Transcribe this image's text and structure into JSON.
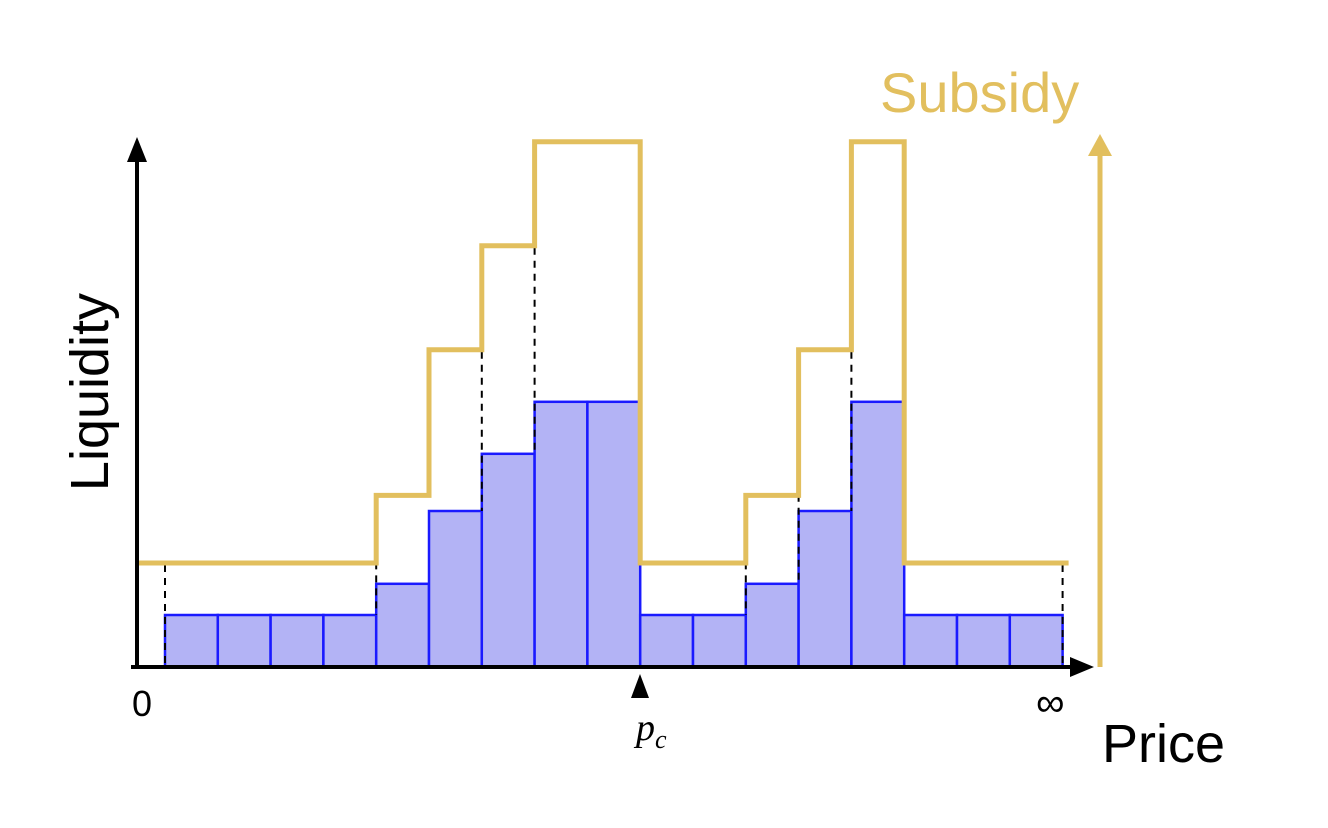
{
  "labels": {
    "y_axis": "Liquidity",
    "x_axis": "Price",
    "subsidy": "Subsidy",
    "origin": "0",
    "infinity": "∞",
    "current_price_base": "p",
    "current_price_sub": "c"
  },
  "colors": {
    "liquidity_fill": "#b3b3f5",
    "liquidity_stroke": "#1a1aff",
    "subsidy_line": "#e2bf5e",
    "axis": "#000000",
    "guide_dash": "#000000"
  },
  "chart_data": {
    "type": "bar",
    "bins": 17,
    "liquidity": [
      1,
      1,
      1,
      1,
      1.6,
      3,
      4.1,
      5.1,
      5.1,
      1,
      1,
      1.6,
      3,
      5.1,
      1,
      1,
      1
    ],
    "subsidy": [
      2,
      2,
      2,
      2,
      3.3,
      6.1,
      8.1,
      10.1,
      10.1,
      2,
      2,
      3.3,
      6.1,
      10.1,
      2,
      2,
      2
    ],
    "current_price_boundary_index": 9,
    "dashed_guides_at_boundaries": [
      0,
      4,
      6,
      7,
      11,
      12,
      13,
      17
    ]
  }
}
